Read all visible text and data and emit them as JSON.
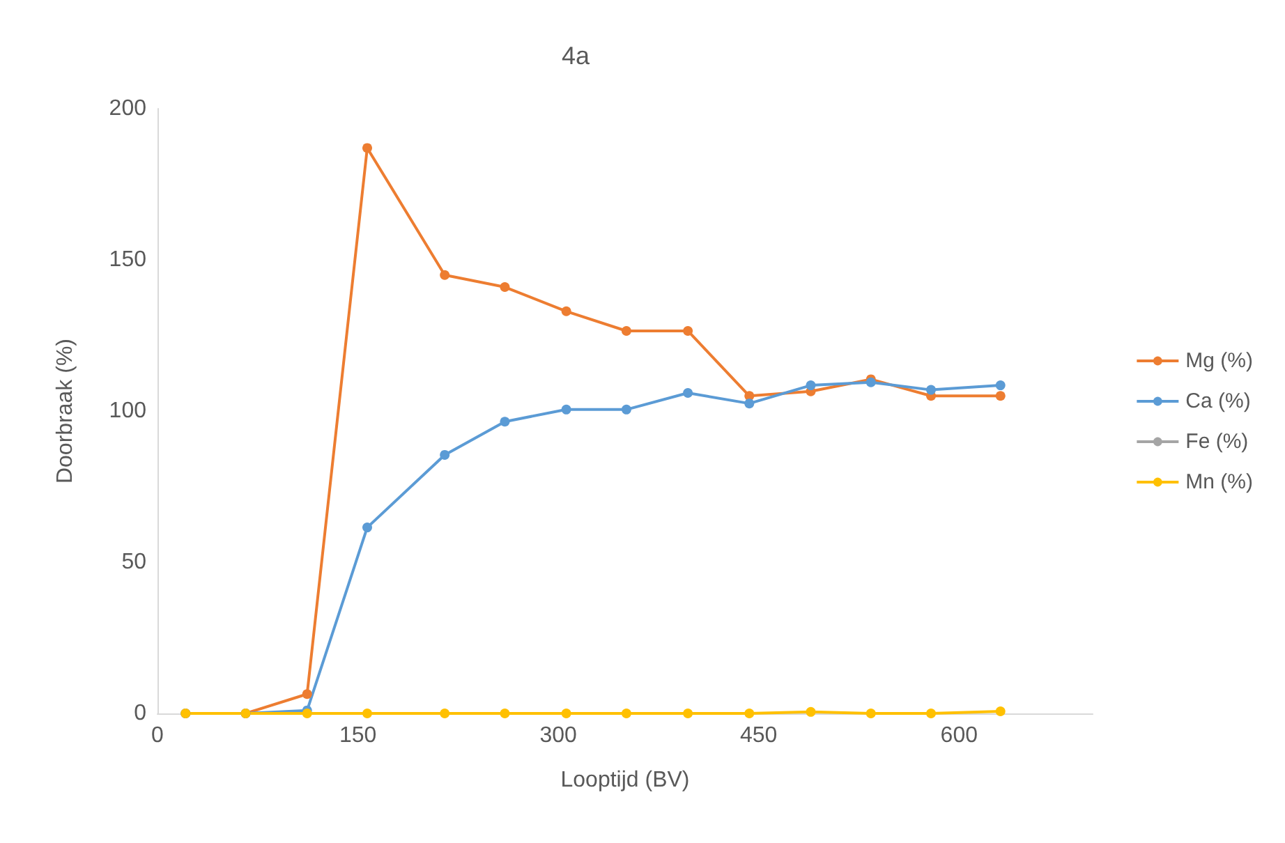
{
  "chart_data": {
    "type": "line",
    "title": "4a",
    "xlabel": "Looptijd (BV)",
    "ylabel": "Doorbraak (%)",
    "x": [
      21,
      66,
      112,
      157,
      215,
      260,
      306,
      351,
      397,
      443,
      489,
      534,
      579,
      631
    ],
    "series": [
      {
        "name": "Mg (%)",
        "color": "#ed7d31",
        "values": [
          0,
          0,
          6.4,
          187,
          145,
          141,
          133,
          126.5,
          126.5,
          105,
          106.5,
          110.5,
          105,
          105
        ]
      },
      {
        "name": "Ca (%)",
        "color": "#5b9bd5",
        "values": [
          0,
          0,
          1,
          61.5,
          85.5,
          96.5,
          100.5,
          100.5,
          106,
          102.5,
          108.5,
          109.5,
          107,
          108.5
        ]
      },
      {
        "name": "Fe (%)",
        "color": "#a5a5a5",
        "values": [
          null,
          null,
          null,
          null,
          null,
          null,
          null,
          null,
          null,
          null,
          null,
          null,
          null,
          null
        ]
      },
      {
        "name": "Mn (%)",
        "color": "#ffc000",
        "values": [
          0,
          0,
          0,
          0,
          0,
          0,
          0,
          0,
          0,
          0,
          0.5,
          0,
          0,
          0.7
        ]
      }
    ],
    "xlim": [
      0,
      700
    ],
    "xticks": [
      0,
      150,
      300,
      450,
      600
    ],
    "ylim": [
      0,
      200
    ],
    "yticks": [
      0,
      50,
      100,
      150,
      200
    ],
    "grid": false,
    "legend": "right",
    "marker": "circle",
    "line_style": "solid"
  }
}
